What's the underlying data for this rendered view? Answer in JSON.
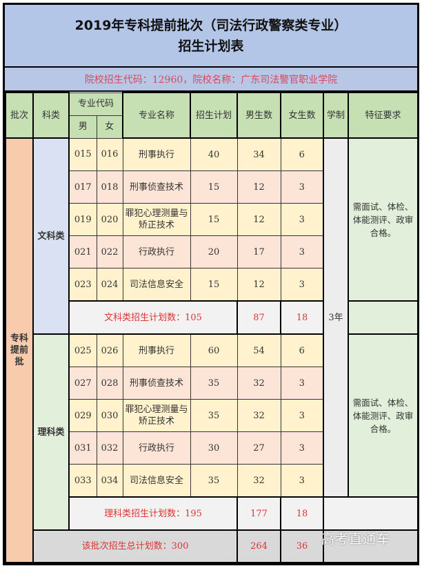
{
  "title": {
    "line1": "2019年专科提前批次（司法行政警察类专业）",
    "line2": "招生计划表"
  },
  "info": "院校招生代码：12960，院校名称：广东司法警官职业学院",
  "headers": {
    "batch": "批次",
    "category": "科类",
    "code": "专业代码",
    "male": "男",
    "female": "女",
    "major": "专业名称",
    "plan": "招生计划",
    "boys": "男生数",
    "girls": "女生数",
    "duration": "学制",
    "requirements": "特征要求"
  },
  "batch_label": "专科提前批",
  "duration_value": "3年",
  "groups": [
    {
      "category": "文科类",
      "requirements": "需面试、体检、体能测评、政审合格。",
      "rows": [
        {
          "m": "015",
          "f": "016",
          "major": "刑事执行",
          "plan": "40",
          "boys": "34",
          "girls": "6"
        },
        {
          "m": "017",
          "f": "018",
          "major": "刑事侦查技术",
          "plan": "15",
          "boys": "12",
          "girls": "3"
        },
        {
          "m": "019",
          "f": "020",
          "major": "罪犯心理测量与矫正技术",
          "plan": "15",
          "boys": "12",
          "girls": "3"
        },
        {
          "m": "021",
          "f": "022",
          "major": "行政执行",
          "plan": "20",
          "boys": "17",
          "girls": "3"
        },
        {
          "m": "023",
          "f": "024",
          "major": "司法信息安全",
          "plan": "15",
          "boys": "12",
          "girls": "3"
        }
      ],
      "subtotal": {
        "label": "文科类招生计划数：105",
        "boys": "87",
        "girls": "18"
      }
    },
    {
      "category": "理科类",
      "requirements": "需面试、体检、体能测评、政审合格。",
      "rows": [
        {
          "m": "025",
          "f": "026",
          "major": "刑事执行",
          "plan": "60",
          "boys": "54",
          "girls": "6"
        },
        {
          "m": "027",
          "f": "028",
          "major": "刑事侦查技术",
          "plan": "35",
          "boys": "32",
          "girls": "3"
        },
        {
          "m": "029",
          "f": "030",
          "major": "罪犯心理测量与矫正技术",
          "plan": "35",
          "boys": "32",
          "girls": "3"
        },
        {
          "m": "031",
          "f": "032",
          "major": "行政执行",
          "plan": "30",
          "boys": "27",
          "girls": "3"
        },
        {
          "m": "033",
          "f": "034",
          "major": "司法信息安全",
          "plan": "35",
          "boys": "32",
          "girls": "3"
        }
      ],
      "subtotal": {
        "label": "理科类招生计划数：195",
        "boys": "177",
        "girls": "18"
      }
    }
  ],
  "total": {
    "label": "该批次招生总计划数：300",
    "boys": "264",
    "girls": "36"
  },
  "watermark": "高考直通车"
}
